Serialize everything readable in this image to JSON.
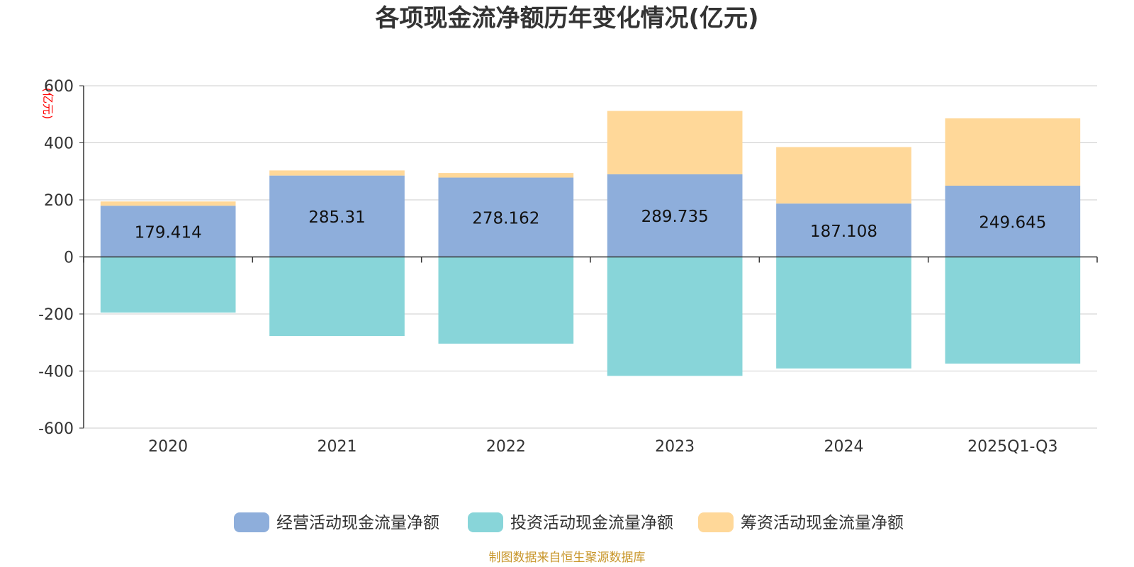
{
  "chart_data": {
    "type": "bar",
    "stacked": true,
    "title": "各项现金流净额历年变化情况(亿元)",
    "ylabel": "(亿元)",
    "xlabel": "",
    "ylim": [
      -600,
      600
    ],
    "yticks": [
      600,
      400,
      200,
      0,
      -200,
      -400,
      -600
    ],
    "ytick_labels": [
      "600",
      "400",
      "200",
      "0",
      "-200",
      "-400",
      "-600"
    ],
    "categories": [
      "2020",
      "2021",
      "2022",
      "2023",
      "2024",
      "2025Q1-Q3"
    ],
    "series": [
      {
        "name": "经营活动现金流量净额",
        "color": "#8eaedb",
        "values": [
          179.414,
          285.31,
          278.162,
          289.735,
          187.108,
          249.645
        ],
        "labels": [
          "179.414",
          "285.31",
          "278.162",
          "289.735",
          "187.108",
          "249.645"
        ]
      },
      {
        "name": "投资活动现金流量净额",
        "color": "#88d5d9",
        "values": [
          -195,
          -277,
          -304,
          -417,
          -391,
          -374
        ]
      },
      {
        "name": "筹资活动现金流量净额",
        "color": "#ffd899",
        "values": [
          15,
          18,
          16,
          222,
          198,
          236
        ]
      }
    ],
    "grid": true,
    "legend_position": "bottom-center"
  },
  "source": "制图数据来自恒生聚源数据库"
}
